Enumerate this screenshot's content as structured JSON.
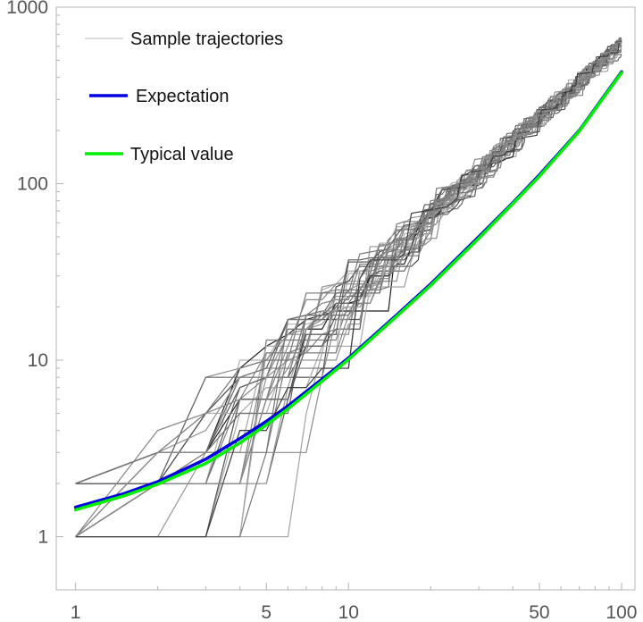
{
  "chart_data": {
    "type": "line",
    "x_scale": "log",
    "y_scale": "log",
    "xlim": [
      0.85,
      112
    ],
    "ylim": [
      0.5,
      1000
    ],
    "grid": false,
    "x_ticks": [
      {
        "value": 1,
        "label": "1"
      },
      {
        "value": 5,
        "label": "5"
      },
      {
        "value": 10,
        "label": "10"
      },
      {
        "value": 50,
        "label": "50"
      },
      {
        "value": 100,
        "label": "100"
      }
    ],
    "y_ticks": [
      {
        "value": 1,
        "label": "1"
      },
      {
        "value": 10,
        "label": "10"
      },
      {
        "value": 100,
        "label": "100"
      },
      {
        "value": 1000,
        "label": "1000"
      }
    ],
    "legend": {
      "placement": "top-left",
      "entries": [
        {
          "label": "Sample trajectories",
          "color": "#c8c8c8"
        },
        {
          "label": "Expectation",
          "color": "#0000e0"
        },
        {
          "label": "Typical value",
          "color": "#00f000"
        }
      ]
    },
    "series": [
      {
        "name": "Expectation",
        "color": "#0000e0",
        "x": [
          1,
          1.5,
          2,
          3,
          4,
          5,
          6,
          8,
          10,
          15,
          20,
          30,
          40,
          50,
          70,
          100
        ],
        "y": [
          1.47,
          1.75,
          2.05,
          2.75,
          3.6,
          4.5,
          5.5,
          7.8,
          10.3,
          18,
          27,
          50,
          78,
          112,
          200,
          430
        ]
      },
      {
        "name": "Typical value",
        "color": "#00f000",
        "x": [
          1,
          1.5,
          2,
          3,
          4,
          5,
          6,
          8,
          10,
          15,
          20,
          30,
          40,
          50,
          70,
          100
        ],
        "y": [
          1.42,
          1.7,
          1.98,
          2.6,
          3.4,
          4.3,
          5.3,
          7.6,
          10.1,
          17.7,
          26.5,
          49,
          77,
          110,
          198,
          425
        ]
      }
    ]
  }
}
